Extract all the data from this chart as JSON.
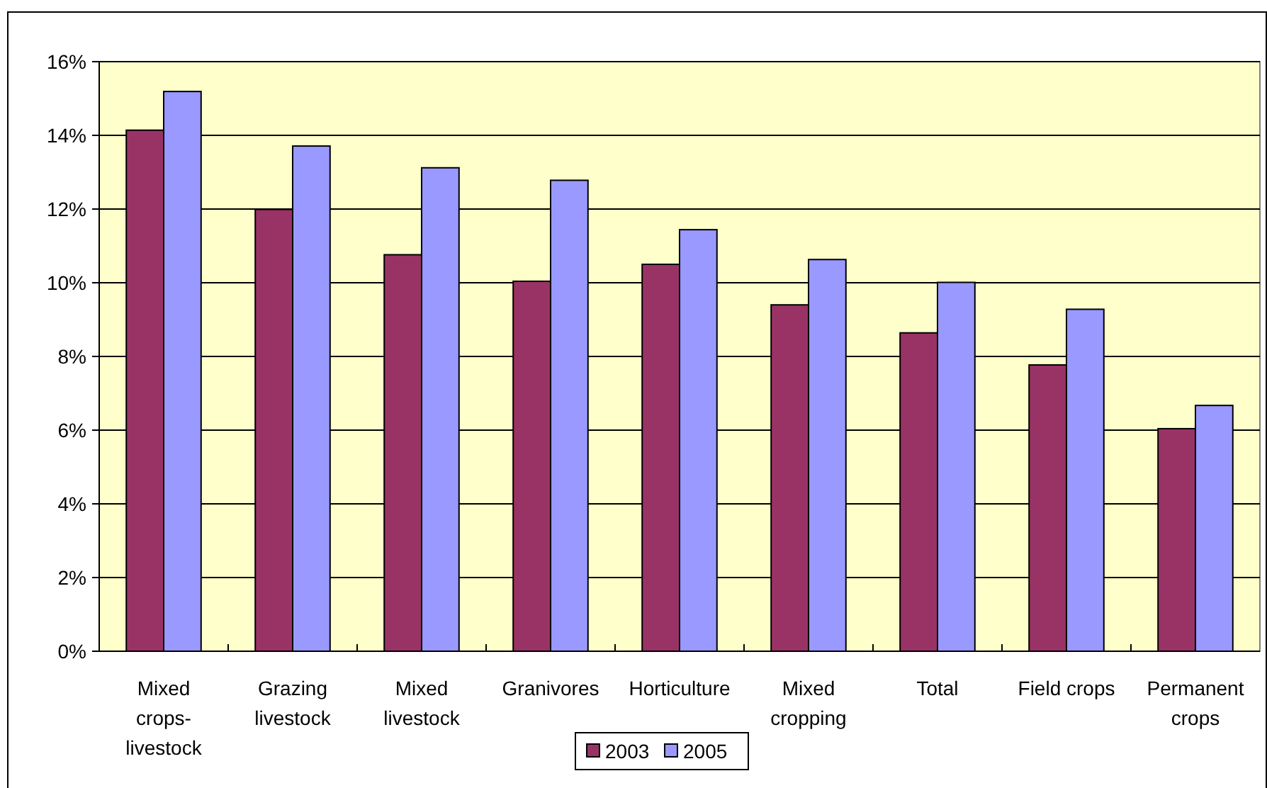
{
  "chart_data": {
    "type": "bar",
    "categories": [
      "Mixed crops-livestock",
      "Grazing livestock",
      "Mixed livestock",
      "Granivores",
      "Horticulture",
      "Mixed cropping",
      "Total",
      "Field crops",
      "Permanent crops"
    ],
    "series": [
      {
        "name": "2003",
        "color": "#993366",
        "values": [
          14.14,
          11.99,
          10.76,
          10.04,
          10.5,
          9.4,
          8.64,
          7.77,
          6.04
        ]
      },
      {
        "name": "2005",
        "color": "#9999ff",
        "values": [
          15.19,
          13.71,
          13.12,
          12.78,
          11.44,
          10.63,
          10.01,
          9.28,
          6.67
        ]
      }
    ],
    "ylim": [
      0,
      16
    ],
    "yticks": [
      {
        "value": 0,
        "label": "0%"
      },
      {
        "value": 2,
        "label": "2%"
      },
      {
        "value": 4,
        "label": "4%"
      },
      {
        "value": 6,
        "label": "6%"
      },
      {
        "value": 8,
        "label": "8%"
      },
      {
        "value": 10,
        "label": "10%"
      },
      {
        "value": 12,
        "label": "12%"
      },
      {
        "value": 14,
        "label": "14%"
      },
      {
        "value": 16,
        "label": "16%"
      }
    ],
    "grid": "y",
    "legend": "bottom"
  }
}
